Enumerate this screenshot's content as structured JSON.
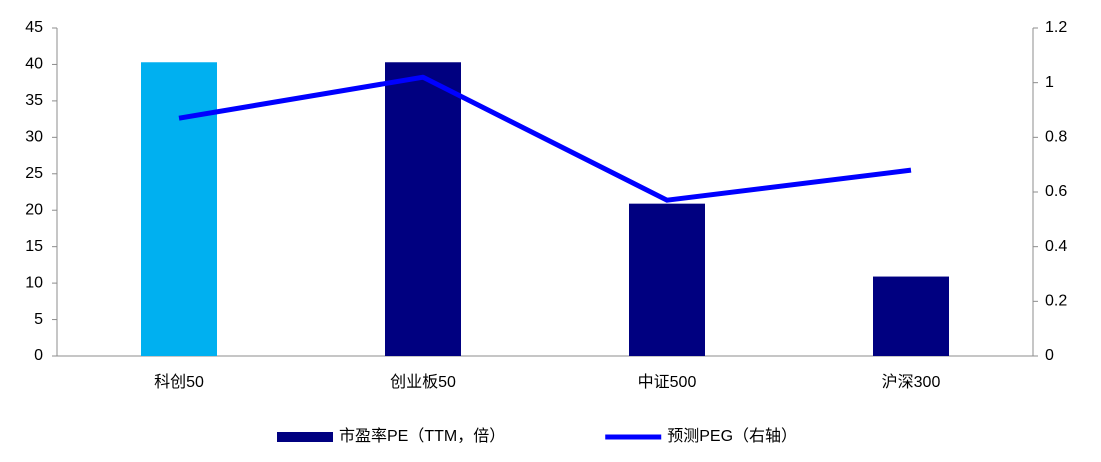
{
  "chart_data": {
    "type": "bar",
    "categories": [
      "科创50",
      "创业板50",
      "中证500",
      "沪深300"
    ],
    "series": [
      {
        "name": "市盈率PE（TTM，倍）",
        "type": "bar",
        "color": "#000080",
        "colors": [
          "#00b0f0",
          "#000080",
          "#000080",
          "#000080"
        ],
        "values": [
          40.3,
          40.3,
          20.9,
          10.9
        ]
      },
      {
        "name": "预测PEG（右轴）",
        "type": "line",
        "axis": "y2",
        "color": "#0000ff",
        "values": [
          0.87,
          1.02,
          0.57,
          0.68
        ]
      }
    ],
    "ylim": [
      0,
      45
    ],
    "yticks": [
      0,
      5,
      10,
      15,
      20,
      25,
      30,
      35,
      40,
      45
    ],
    "y2lim": [
      0,
      1.2
    ],
    "y2ticks": [
      0,
      0.2,
      0.4,
      0.6,
      0.8,
      1,
      1.2
    ],
    "grid": false,
    "legend": "bottom"
  }
}
